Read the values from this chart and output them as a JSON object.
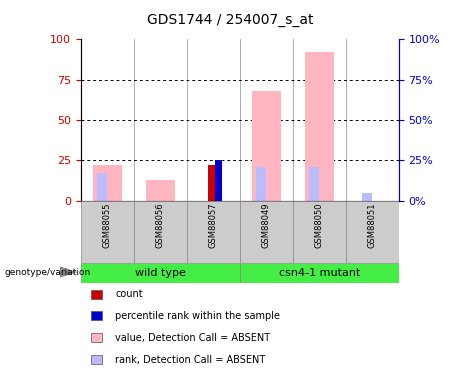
{
  "title": "GDS1744 / 254007_s_at",
  "samples": [
    "GSM88055",
    "GSM88056",
    "GSM88057",
    "GSM88049",
    "GSM88050",
    "GSM88051"
  ],
  "group_defs": [
    {
      "label": "wild type",
      "start": 0,
      "end": 3
    },
    {
      "label": "csn4-1 mutant",
      "start": 3,
      "end": 6
    }
  ],
  "pink_bars": [
    22,
    13,
    0,
    68,
    92,
    0
  ],
  "rank_blue_bars": [
    17,
    0,
    0,
    21,
    21,
    0
  ],
  "light_blue_bars": [
    0,
    0,
    0,
    0,
    0,
    5
  ],
  "red_bars": [
    0,
    0,
    22,
    0,
    0,
    0
  ],
  "blue_bars": [
    0,
    0,
    25,
    0,
    0,
    0
  ],
  "ylim": [
    0,
    100
  ],
  "y_ticks": [
    0,
    25,
    50,
    75,
    100
  ],
  "color_pink": "#FFB6C1",
  "color_red": "#cc0000",
  "color_blue": "#0000cc",
  "color_light_blue": "#bbbbff",
  "bg_label": "#cccccc",
  "bg_group": "#44ee44",
  "left_axis_color": "#cc0000",
  "right_axis_color": "#0000cc",
  "legend_items": [
    {
      "color": "#cc0000",
      "label": "count"
    },
    {
      "color": "#0000cc",
      "label": "percentile rank within the sample"
    },
    {
      "color": "#FFB6C1",
      "label": "value, Detection Call = ABSENT"
    },
    {
      "color": "#bbbbff",
      "label": "rank, Detection Call = ABSENT"
    }
  ]
}
